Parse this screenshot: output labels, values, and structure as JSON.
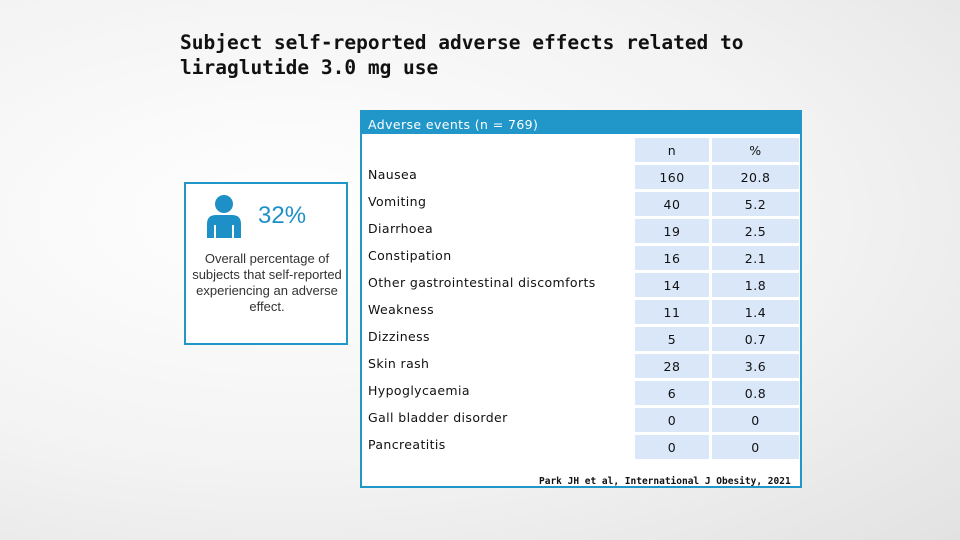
{
  "slide": {
    "title_line1": "Subject self-reported adverse effects related to",
    "title_line2": "liraglutide 3.0 mg use"
  },
  "stat_card": {
    "icon": "person-icon",
    "percentage": "32%",
    "description": "Overall percentage of subjects that self-reported experiencing an adverse effect."
  },
  "table": {
    "header": "Adverse events (n = 769)",
    "col_n": "n",
    "col_pct": "%",
    "rows": [
      {
        "label": "Nausea",
        "n": "160",
        "pct": "20.8"
      },
      {
        "label": "Vomiting",
        "n": "40",
        "pct": "5.2"
      },
      {
        "label": "Diarrhoea",
        "n": "19",
        "pct": "2.5"
      },
      {
        "label": "Constipation",
        "n": "16",
        "pct": "2.1"
      },
      {
        "label": "Other gastrointestinal discomforts",
        "n": "14",
        "pct": "1.8"
      },
      {
        "label": "Weakness",
        "n": "11",
        "pct": "1.4"
      },
      {
        "label": "Dizziness",
        "n": "5",
        "pct": "0.7"
      },
      {
        "label": "Skin rash",
        "n": "28",
        "pct": "3.6"
      },
      {
        "label": "Hypoglycaemia",
        "n": "6",
        "pct": "0.8"
      },
      {
        "label": "Gall bladder disorder",
        "n": "0",
        "pct": "0"
      },
      {
        "label": "Pancreatitis",
        "n": "0",
        "pct": "0"
      }
    ]
  },
  "citation": "Park JH et al, International J Obesity, 2021",
  "colors": {
    "accent": "#2196c9",
    "cell_fill": "#d9e7f9"
  }
}
